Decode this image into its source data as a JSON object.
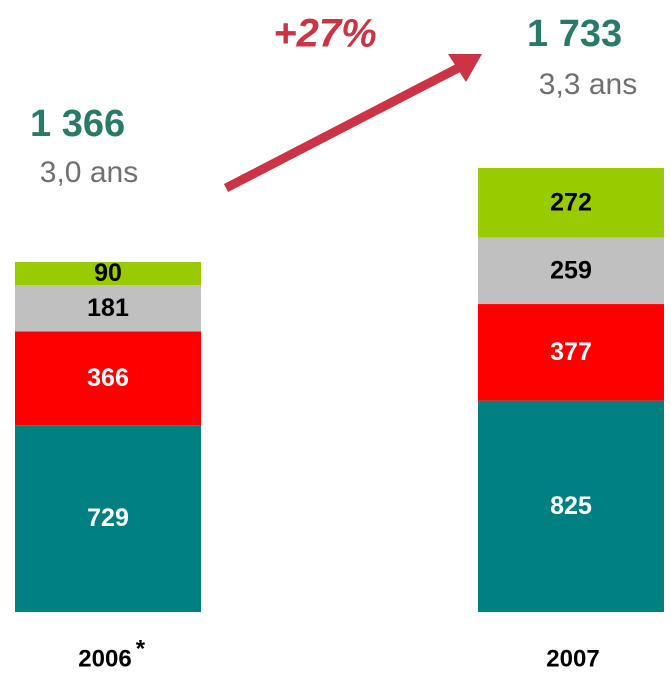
{
  "chart_data": {
    "type": "stacked_bar",
    "categories": [
      "2006",
      "2007"
    ],
    "series": [
      {
        "color": "#008080",
        "label_color": "#ffffff",
        "values": [
          729,
          825
        ]
      },
      {
        "color": "#ff0000",
        "label_color": "#ffffff",
        "values": [
          366,
          377
        ]
      },
      {
        "color": "#c0c0c0",
        "label_color": "#000000",
        "values": [
          181,
          259
        ]
      },
      {
        "color": "#99cc00",
        "label_color": "#000000",
        "values": [
          90,
          272
        ]
      }
    ],
    "totals": {
      "values": [
        1366,
        1733
      ],
      "value_labels": [
        "1 366",
        "1 733"
      ]
    },
    "subtitles": [
      "3,0 ans",
      "3,3 ans"
    ],
    "growth": "+27%",
    "footnote_mark": "*"
  }
}
